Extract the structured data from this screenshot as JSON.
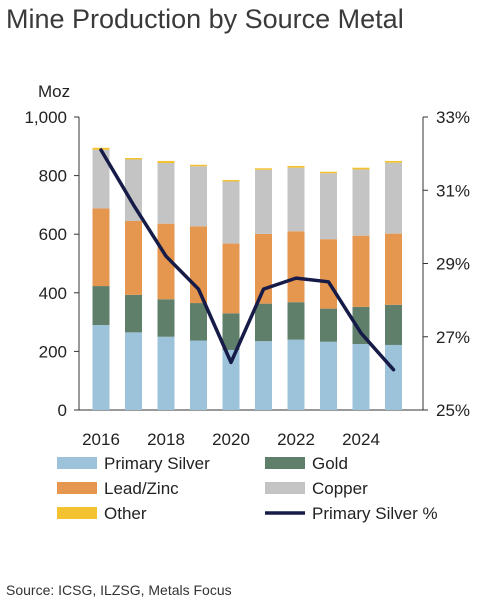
{
  "title": "Mine Production by Source Metal",
  "source": "Source: ICSG, ILZSG, Metals Focus",
  "colors": {
    "primary_silver": "#9dc3da",
    "gold": "#5f7f6b",
    "lead_zinc": "#e5964f",
    "copper": "#c4c4c4",
    "other": "#f2c230",
    "primary_silver_pct": "#161b47",
    "axis": "#333333"
  },
  "chart_data": {
    "type": "bar",
    "stacked": true,
    "categories": [
      "2016",
      "2017",
      "2018",
      "2019",
      "2020",
      "2021",
      "2022",
      "2023",
      "2024",
      "2025"
    ],
    "x_tick_labels": [
      "2016",
      "2018",
      "2020",
      "2022",
      "2024"
    ],
    "left_axis": {
      "unit_label": "Moz",
      "ylim": [
        0,
        1000
      ],
      "tick_labels": [
        "0",
        "200",
        "400",
        "600",
        "800",
        "1,000"
      ],
      "ticks": [
        0,
        200,
        400,
        600,
        800,
        1000
      ]
    },
    "right_axis": {
      "ylim": [
        25,
        33
      ],
      "tick_labels": [
        "25%",
        "27%",
        "29%",
        "31%",
        "33%"
      ],
      "ticks": [
        25,
        27,
        29,
        31,
        33
      ]
    },
    "series": [
      {
        "name": "Primary Silver",
        "color": "#9dc3da",
        "values": [
          290,
          265,
          250,
          237,
          205,
          235,
          240,
          233,
          225,
          222
        ]
      },
      {
        "name": "Gold",
        "color": "#5f7f6b",
        "values": [
          133,
          128,
          128,
          128,
          125,
          128,
          128,
          113,
          127,
          137
        ]
      },
      {
        "name": "Lead/Zinc",
        "color": "#e5964f",
        "values": [
          265,
          252,
          258,
          262,
          238,
          238,
          242,
          237,
          243,
          243
        ]
      },
      {
        "name": "Copper",
        "color": "#c4c4c4",
        "values": [
          200,
          210,
          207,
          205,
          212,
          219,
          217,
          225,
          226,
          242
        ]
      },
      {
        "name": "Other",
        "color": "#f2c230",
        "values": [
          7,
          5,
          7,
          5,
          5,
          5,
          6,
          5,
          6,
          6
        ]
      }
    ],
    "line_series": {
      "name": "Primary Silver %",
      "color": "#161b47",
      "axis": "right",
      "values": [
        32.1,
        30.6,
        29.2,
        28.3,
        26.3,
        28.3,
        28.6,
        28.5,
        27.1,
        26.1
      ]
    },
    "legend": {
      "position": "bottom",
      "items": [
        {
          "name": "Primary Silver",
          "kind": "box",
          "color": "#9dc3da"
        },
        {
          "name": "Gold",
          "kind": "box",
          "color": "#5f7f6b"
        },
        {
          "name": "Lead/Zinc",
          "kind": "box",
          "color": "#e5964f"
        },
        {
          "name": "Copper",
          "kind": "box",
          "color": "#c4c4c4"
        },
        {
          "name": "Other",
          "kind": "box",
          "color": "#f2c230"
        },
        {
          "name": "Primary Silver %",
          "kind": "line",
          "color": "#161b47"
        }
      ]
    },
    "grid": false
  }
}
